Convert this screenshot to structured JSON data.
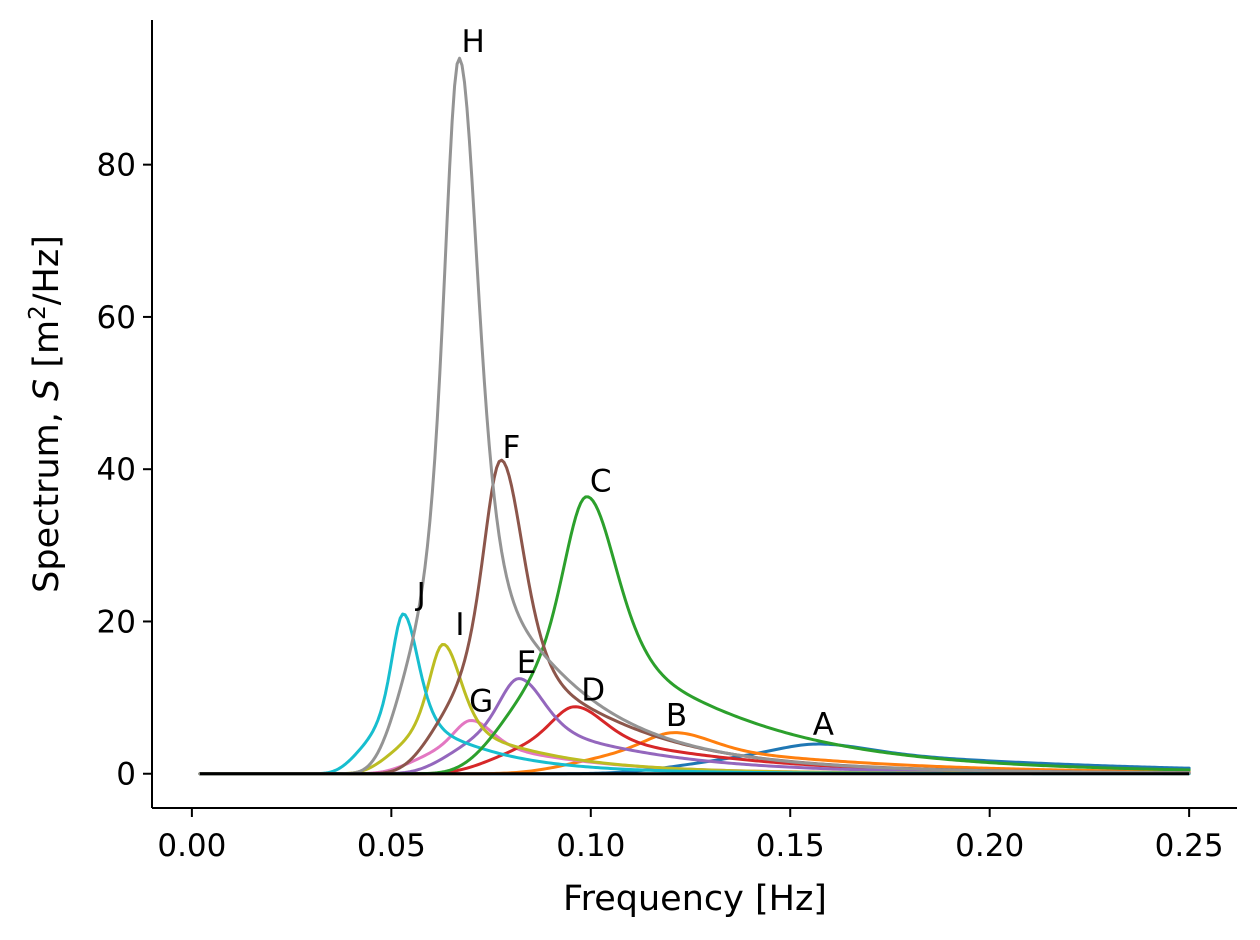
{
  "chart_data": {
    "type": "line",
    "xlabel": "Frequency [Hz]",
    "ylabel": {
      "prefix": "Spectrum, ",
      "var": "S",
      "open": " [m",
      "sup": "2",
      "close": "/Hz]"
    },
    "xlim": [
      -0.01,
      0.262
    ],
    "ylim": [
      -4.5,
      99
    ],
    "xticks": [
      {
        "value": 0.0,
        "label": "0.00"
      },
      {
        "value": 0.05,
        "label": "0.05"
      },
      {
        "value": 0.1,
        "label": "0.10"
      },
      {
        "value": 0.15,
        "label": "0.15"
      },
      {
        "value": 0.2,
        "label": "0.20"
      },
      {
        "value": 0.25,
        "label": "0.25"
      }
    ],
    "yticks": [
      {
        "value": 0,
        "label": "0"
      },
      {
        "value": 20,
        "label": "20"
      },
      {
        "value": 40,
        "label": "40"
      },
      {
        "value": 60,
        "label": "60"
      },
      {
        "value": 80,
        "label": "80"
      }
    ],
    "grid": false,
    "x_range": [
      0.002,
      0.25
    ],
    "series": [
      {
        "name": "H",
        "color": "#949494",
        "fp": 0.067,
        "peak": 94.0,
        "gamma": 3.5,
        "label_at": [
          0.0705,
          94.8
        ]
      },
      {
        "name": "F",
        "color": "#8c564b",
        "fp": 0.0775,
        "peak": 41.2,
        "gamma": 3.0,
        "label_at": [
          0.0801,
          41.5
        ]
      },
      {
        "name": "C",
        "color": "#2ca02c",
        "fp": 0.099,
        "peak": 36.4,
        "gamma": 2.4,
        "label_at": [
          0.1025,
          37.1
        ]
      },
      {
        "name": "J",
        "color": "#17becf",
        "fp": 0.053,
        "peak": 21.0,
        "gamma": 3.2,
        "label_at": [
          0.0575,
          22.2
        ]
      },
      {
        "name": "I",
        "color": "#bcbd22",
        "fp": 0.063,
        "peak": 17.0,
        "gamma": 3.0,
        "label_at": [
          0.0672,
          18.2
        ]
      },
      {
        "name": "E",
        "color": "#9467bd",
        "fp": 0.082,
        "peak": 12.5,
        "gamma": 2.2,
        "label_at": [
          0.0839,
          13.2
        ]
      },
      {
        "name": "D",
        "color": "#d62728",
        "fp": 0.096,
        "peak": 8.8,
        "gamma": 2.0,
        "label_at": [
          0.1006,
          9.6
        ]
      },
      {
        "name": "G",
        "color": "#e377c2",
        "fp": 0.07,
        "peak": 7.0,
        "gamma": 2.0,
        "label_at": [
          0.0725,
          8.2
        ]
      },
      {
        "name": "B",
        "color": "#ff7f0e",
        "fp": 0.121,
        "peak": 5.4,
        "gamma": 1.8,
        "label_at": [
          0.1215,
          6.3
        ]
      },
      {
        "name": "A",
        "color": "#1f77b4",
        "fp": 0.157,
        "peak": 3.9,
        "gamma": 1.5,
        "label_at": [
          0.1583,
          5.1
        ]
      }
    ]
  }
}
